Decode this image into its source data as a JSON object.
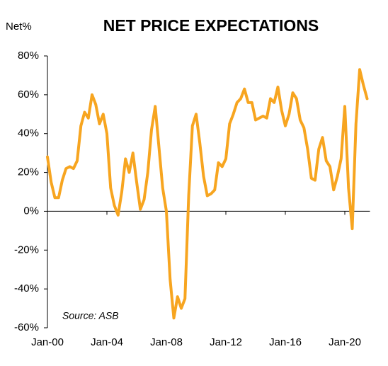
{
  "chart_data": {
    "type": "line",
    "title": "NET PRICE EXPECTATIONS",
    "y_label": "Net%",
    "annotation": "Source: ASB",
    "categories": [
      "Jan-00",
      null,
      null,
      null,
      null,
      null,
      null,
      null,
      null,
      null,
      null,
      null,
      null,
      null,
      null,
      null,
      "Jan-04",
      null,
      null,
      null,
      null,
      null,
      null,
      null,
      null,
      null,
      null,
      null,
      null,
      null,
      null,
      null,
      "Jan-08",
      null,
      null,
      null,
      null,
      null,
      null,
      null,
      null,
      null,
      null,
      null,
      null,
      null,
      null,
      null,
      "Jan-12",
      null,
      null,
      null,
      null,
      null,
      null,
      null,
      null,
      null,
      null,
      null,
      null,
      null,
      null,
      null,
      "Jan-16",
      null,
      null,
      null,
      null,
      null,
      null,
      null,
      null,
      null,
      null,
      null,
      null,
      null,
      null,
      null,
      "Jan-20",
      null,
      null,
      null,
      null,
      null,
      null
    ],
    "series": [
      {
        "name": "Net price expectations",
        "color": "#f7a520",
        "values": [
          28,
          15,
          7,
          7,
          16,
          22,
          23,
          22,
          26,
          44,
          51,
          48,
          60,
          55,
          45,
          50,
          40,
          12,
          3,
          -2,
          10,
          27,
          20,
          30,
          15,
          1,
          6,
          20,
          42,
          54,
          33,
          12,
          0,
          -35,
          -55,
          -44,
          -50,
          -45,
          8,
          44,
          50,
          35,
          18,
          8,
          9,
          11,
          25,
          23,
          27,
          45,
          50,
          56,
          58,
          63,
          56,
          56,
          47,
          48,
          49,
          48,
          58,
          56,
          64,
          52,
          44,
          50,
          61,
          58,
          47,
          43,
          32,
          17,
          16,
          32,
          38,
          26,
          23,
          11,
          18,
          27,
          54,
          12,
          -9,
          45,
          73,
          65,
          58
        ]
      }
    ],
    "ylim": [
      -60,
      80
    ],
    "yticks": [
      {
        "value": -60,
        "label": "-60%"
      },
      {
        "value": -40,
        "label": "-40%"
      },
      {
        "value": -20,
        "label": "-20%"
      },
      {
        "value": 0,
        "label": "0%"
      },
      {
        "value": 20,
        "label": "20%"
      },
      {
        "value": 40,
        "label": "40%"
      },
      {
        "value": 60,
        "label": "60%"
      },
      {
        "value": 80,
        "label": "80%"
      }
    ]
  }
}
